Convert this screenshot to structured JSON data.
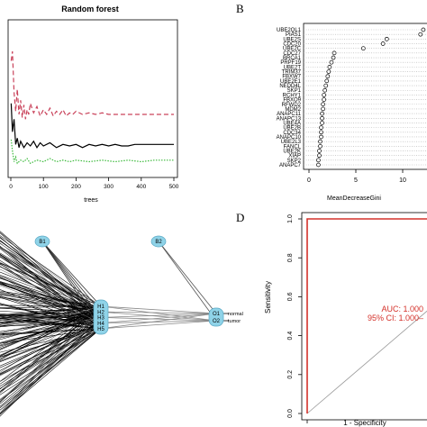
{
  "panels": {
    "B": {
      "letter": "B"
    },
    "D": {
      "letter": "D"
    }
  },
  "colors": {
    "black": "#000000",
    "red": "#c9435b",
    "green": "#3cba3c",
    "roc_red": "#d4312a",
    "grey": "#9a9a9a",
    "node_fill": "#8fd3e8",
    "node_stroke": "#5aa8c4"
  },
  "chart_data": [
    {
      "type": "line",
      "title": "Random forest",
      "xlabel": "trees",
      "ylabel": "",
      "xlim": [
        0,
        500
      ],
      "xticks": [
        "0",
        "100",
        "200",
        "300",
        "400",
        "500"
      ],
      "series": [
        {
          "color": "red",
          "dash": "dashed",
          "x": [
            1,
            5,
            10,
            15,
            20,
            25,
            30,
            35,
            40,
            45,
            50,
            55,
            60,
            70,
            80,
            90,
            100,
            110,
            120,
            130,
            140,
            150,
            160,
            170,
            180,
            190,
            200,
            220,
            240,
            260,
            280,
            300,
            500
          ],
          "y": [
            0.74,
            0.8,
            0.54,
            0.42,
            0.56,
            0.4,
            0.49,
            0.38,
            0.46,
            0.37,
            0.43,
            0.4,
            0.47,
            0.41,
            0.45,
            0.39,
            0.43,
            0.4,
            0.44,
            0.39,
            0.42,
            0.4,
            0.43,
            0.39,
            0.41,
            0.4,
            0.42,
            0.4,
            0.41,
            0.4,
            0.41,
            0.4,
            0.4
          ]
        },
        {
          "color": "black",
          "dash": "solid",
          "x": [
            1,
            5,
            10,
            15,
            20,
            25,
            30,
            40,
            50,
            60,
            70,
            80,
            90,
            100,
            120,
            140,
            160,
            180,
            200,
            220,
            240,
            260,
            280,
            300,
            320,
            340,
            360,
            380,
            500
          ],
          "y": [
            0.47,
            0.29,
            0.37,
            0.21,
            0.25,
            0.19,
            0.23,
            0.19,
            0.22,
            0.2,
            0.23,
            0.19,
            0.22,
            0.2,
            0.22,
            0.19,
            0.21,
            0.2,
            0.21,
            0.19,
            0.21,
            0.2,
            0.21,
            0.2,
            0.21,
            0.2,
            0.2,
            0.21,
            0.21
          ]
        },
        {
          "color": "green",
          "dash": "dotted",
          "x": [
            1,
            5,
            10,
            15,
            20,
            30,
            40,
            50,
            60,
            80,
            100,
            120,
            140,
            160,
            180,
            200,
            240,
            280,
            320,
            360,
            400,
            440,
            500
          ],
          "y": [
            0.24,
            0.17,
            0.1,
            0.13,
            0.09,
            0.11,
            0.1,
            0.12,
            0.09,
            0.11,
            0.1,
            0.12,
            0.1,
            0.11,
            0.1,
            0.11,
            0.1,
            0.11,
            0.1,
            0.11,
            0.1,
            0.11,
            0.11
          ]
        }
      ]
    },
    {
      "type": "scatter",
      "xlabel": "MeanDecreaseGini",
      "xticks": [
        "0",
        "5",
        "10"
      ],
      "xlim": [
        0,
        12.5
      ],
      "categories": [
        "UBE2QL1",
        "PIAS1",
        "UBE2S",
        "CDC20",
        "UBE2C",
        "CDC27",
        "BRCA1",
        "PRPF19",
        "UBE2T",
        "TRIM37",
        "FBXW7",
        "UBE2E1",
        "NEDD4L",
        "SKP1",
        "RCHY1",
        "FBXO9",
        "RFWD2",
        "MDM2",
        "ANAPC11",
        "ANAPC13",
        "UBE4A",
        "UBE2B",
        "CDC34",
        "ANAPC10",
        "UBE2L3",
        "FANCL",
        "UBE2K",
        "XIAP",
        "SKP2",
        "ANAPC7"
      ],
      "values": [
        12.2,
        11.9,
        8.3,
        7.9,
        5.8,
        2.7,
        2.6,
        2.4,
        2.2,
        2.1,
        2.0,
        1.9,
        1.8,
        1.7,
        1.6,
        1.6,
        1.5,
        1.5,
        1.4,
        1.4,
        1.4,
        1.3,
        1.3,
        1.3,
        1.2,
        1.2,
        1.1,
        1.1,
        1.0,
        1.0
      ]
    },
    {
      "type": "diagram",
      "input_nodes": [
        "B1"
      ],
      "hidden_nodes": [
        "H1",
        "H2",
        "H3",
        "H4",
        "H5"
      ],
      "bias_nodes": [
        "B2"
      ],
      "output_nodes": [
        "O1",
        "O2"
      ],
      "output_labels": [
        "normal",
        "tumor"
      ]
    },
    {
      "type": "line",
      "xlabel": "1 - Specificity",
      "ylabel": "Sensitivity",
      "xticks": [
        "0.0"
      ],
      "yticks": [
        "0.0",
        "0.2",
        "0.4",
        "0.6",
        "0.8",
        "1.0"
      ],
      "xlim": [
        0,
        0.55
      ],
      "ylim": [
        0,
        1
      ],
      "annotations": [
        "AUC: 1.000",
        "95% CI: 1.000–"
      ],
      "roc": {
        "x": [
          0,
          0,
          0.55
        ],
        "y": [
          0,
          1,
          1
        ]
      },
      "reference": {
        "x": [
          0,
          0.55
        ],
        "y": [
          0,
          0.55
        ]
      }
    }
  ]
}
